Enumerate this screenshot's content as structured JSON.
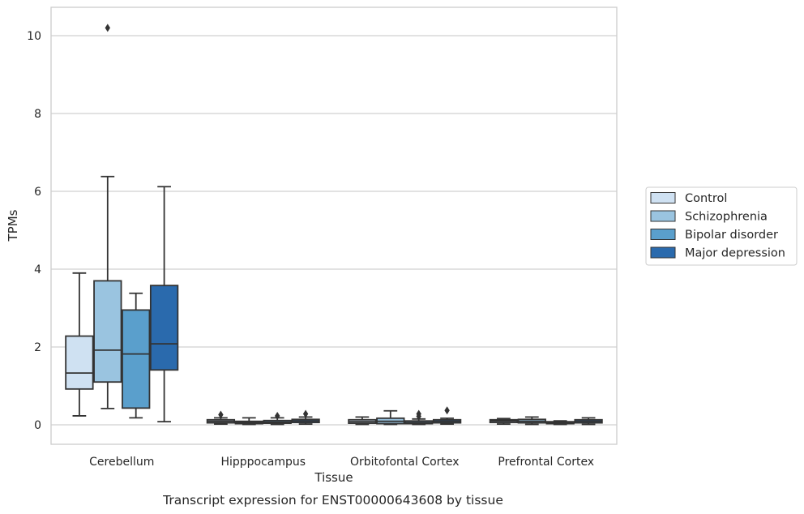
{
  "chart_data": {
    "type": "box",
    "title": "",
    "caption": "Transcript expression for ENST00000643608 by tissue",
    "xlabel": "Tissue",
    "ylabel": "TPMs",
    "ylim": [
      -0.5,
      10.7
    ],
    "yticks": [
      0,
      2,
      4,
      6,
      8,
      10
    ],
    "grid": "horizontal",
    "legend_position": "right",
    "categories": [
      "Cerebellum",
      "Hipppocampus",
      "Orbitofontal Cortex",
      "Prefrontal Cortex"
    ],
    "series": [
      {
        "name": "Control",
        "color": "#cfe1f2",
        "boxes": [
          {
            "whisker_low": 0.23,
            "q1": 0.92,
            "median": 1.33,
            "q3": 2.28,
            "whisker_high": 3.9,
            "outliers": []
          },
          {
            "whisker_low": 0.02,
            "q1": 0.05,
            "median": 0.09,
            "q3": 0.13,
            "whisker_high": 0.18,
            "outliers": [
              0.26
            ]
          },
          {
            "whisker_low": 0.01,
            "q1": 0.04,
            "median": 0.08,
            "q3": 0.13,
            "whisker_high": 0.2,
            "outliers": []
          },
          {
            "whisker_low": 0.02,
            "q1": 0.06,
            "median": 0.1,
            "q3": 0.13,
            "whisker_high": 0.16,
            "outliers": []
          }
        ]
      },
      {
        "name": "Schizophrenia",
        "color": "#9ac4e0",
        "boxes": [
          {
            "whisker_low": 0.42,
            "q1": 1.1,
            "median": 1.92,
            "q3": 3.7,
            "whisker_high": 6.38,
            "outliers": [
              10.2
            ]
          },
          {
            "whisker_low": 0.01,
            "q1": 0.03,
            "median": 0.06,
            "q3": 0.09,
            "whisker_high": 0.18,
            "outliers": []
          },
          {
            "whisker_low": 0.01,
            "q1": 0.03,
            "median": 0.09,
            "q3": 0.17,
            "whisker_high": 0.36,
            "outliers": []
          },
          {
            "whisker_low": 0.01,
            "q1": 0.05,
            "median": 0.09,
            "q3": 0.14,
            "whisker_high": 0.2,
            "outliers": []
          }
        ]
      },
      {
        "name": "Bipolar disorder",
        "color": "#5a9fcc",
        "boxes": [
          {
            "whisker_low": 0.18,
            "q1": 0.43,
            "median": 1.82,
            "q3": 2.95,
            "whisker_high": 3.38,
            "outliers": []
          },
          {
            "whisker_low": 0.01,
            "q1": 0.04,
            "median": 0.07,
            "q3": 0.11,
            "whisker_high": 0.18,
            "outliers": [
              0.23
            ]
          },
          {
            "whisker_low": 0.01,
            "q1": 0.03,
            "median": 0.06,
            "q3": 0.1,
            "whisker_high": 0.15,
            "outliers": [
              0.22,
              0.28
            ]
          },
          {
            "whisker_low": 0.01,
            "q1": 0.03,
            "median": 0.05,
            "q3": 0.08,
            "whisker_high": 0.1,
            "outliers": []
          }
        ]
      },
      {
        "name": "Major depression",
        "color": "#2a6aad",
        "boxes": [
          {
            "whisker_low": 0.08,
            "q1": 1.41,
            "median": 2.08,
            "q3": 3.58,
            "whisker_high": 6.12,
            "outliers": []
          },
          {
            "whisker_low": 0.02,
            "q1": 0.06,
            "median": 0.1,
            "q3": 0.14,
            "whisker_high": 0.2,
            "outliers": [
              0.28
            ]
          },
          {
            "whisker_low": 0.02,
            "q1": 0.05,
            "median": 0.09,
            "q3": 0.13,
            "whisker_high": 0.17,
            "outliers": [
              0.37
            ]
          },
          {
            "whisker_low": 0.01,
            "q1": 0.05,
            "median": 0.09,
            "q3": 0.13,
            "whisker_high": 0.18,
            "outliers": []
          }
        ]
      }
    ]
  }
}
